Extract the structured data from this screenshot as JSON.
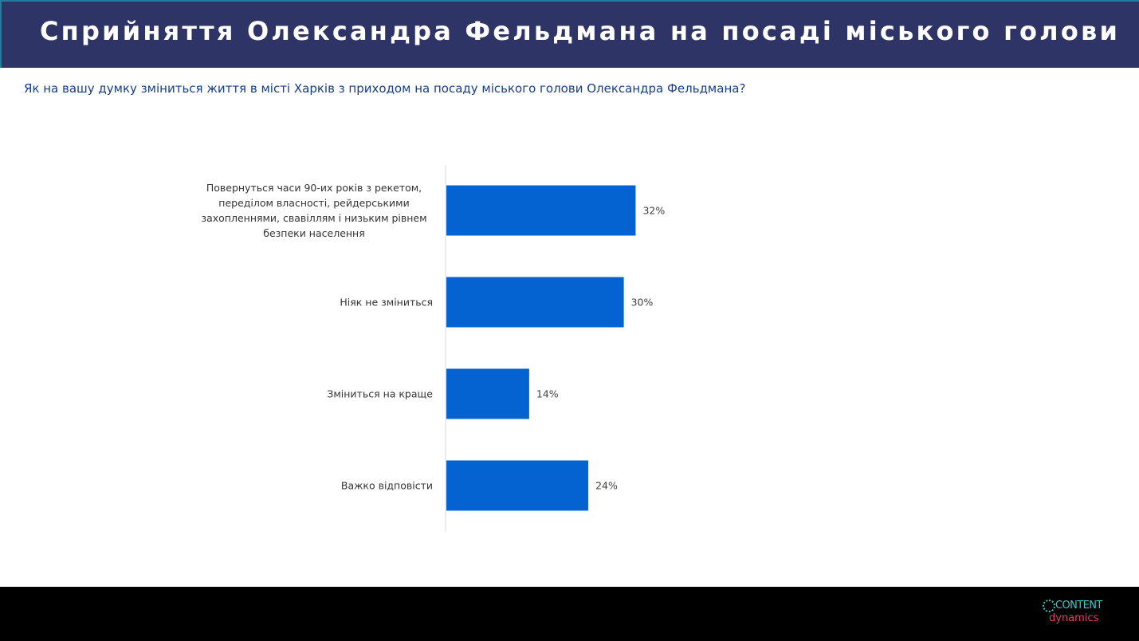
{
  "header": {
    "title": "Сприйняття Олександра Фельдмана на посаді міського голови"
  },
  "question": "Як на вашу думку зміниться життя в місті Харків з приходом на посаду міського голови Олександра Фельдмана?",
  "chart_data": {
    "type": "bar",
    "orientation": "horizontal",
    "categories": [
      "Повернуться часи 90-их років з рекетом, переділом власності, рейдерськими захопленнями, свавіллям і низьким рівнем безпеки населення",
      "Ніяк не зміниться",
      "Зміниться на краще",
      "Важко відповісти"
    ],
    "category_lines": [
      [
        "Повернуться часи 90-их років з рекетом,",
        "переділом власності, рейдерськими",
        "захопленнями, свавіллям і низьким рівнем",
        "безпеки населення"
      ],
      [
        "Ніяк не зміниться"
      ],
      [
        "Зміниться на краще"
      ],
      [
        "Важко відповісти"
      ]
    ],
    "values": [
      32,
      30,
      14,
      24
    ],
    "value_labels": [
      "32%",
      "30%",
      "14%",
      "24%"
    ],
    "unit": "%",
    "bar_color": "#0563d1",
    "grid": false,
    "legend": "none"
  },
  "footer": {
    "logo_top": "CONTENT",
    "logo_bottom": "dynamics",
    "logo_colors": {
      "top": "#3fc7c7",
      "bottom": "#e73a72"
    }
  },
  "colors": {
    "title_bar": "#2e3566",
    "question_text": "#173e8a",
    "footer_bg": "#000000"
  }
}
